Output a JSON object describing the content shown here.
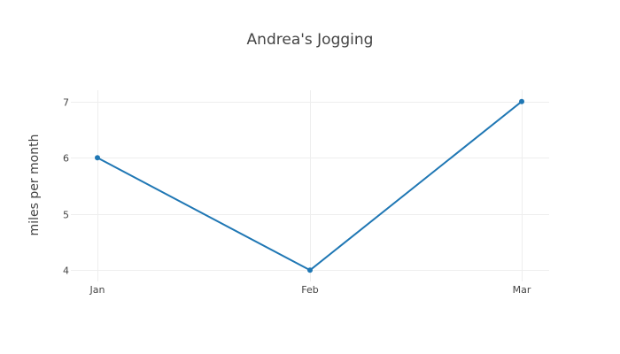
{
  "chart_data": {
    "type": "line",
    "title": "Andrea's Jogging",
    "xlabel": "",
    "ylabel": "miles per month",
    "categories": [
      "Jan",
      "Feb",
      "Mar"
    ],
    "series": [
      {
        "values": [
          6,
          4,
          7
        ],
        "color": "#1f77b4"
      }
    ],
    "yticks": [
      4,
      5,
      6,
      7
    ],
    "ytick_labels": [
      "4",
      "5",
      "6",
      "7"
    ],
    "ylim": [
      3.8,
      7.2
    ],
    "grid": true,
    "legend": "none",
    "markers": true
  }
}
